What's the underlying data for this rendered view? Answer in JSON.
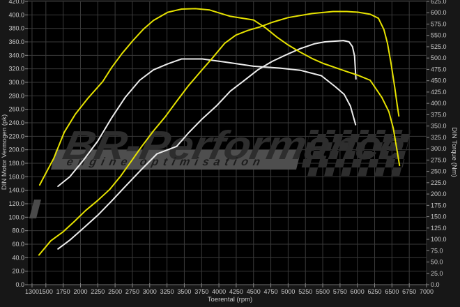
{
  "watermark": {
    "brand": "BR-Performance",
    "tagline": "engine optimisation"
  },
  "colors": {
    "background_outer": "#171717",
    "plot_background": "#000000",
    "grid": "#3a3a3a",
    "tick_text": "#c9c9c9",
    "tuned_curve": "#e6e200",
    "stock_curve": "#ededed",
    "watermark_text": "#2d2d2d",
    "watermark_strip": "#4e4e4e"
  },
  "chart_data": {
    "type": "line",
    "title": "",
    "legend": false,
    "grid": true,
    "x": {
      "label": "Toerental (rpm)",
      "min": 1240,
      "max": 7000,
      "ticks": [
        1300,
        1500,
        1750,
        2000,
        2250,
        2500,
        2750,
        3000,
        3250,
        3500,
        3750,
        4000,
        4250,
        4500,
        4750,
        5000,
        5250,
        5500,
        5750,
        6000,
        6250,
        6500,
        6750,
        7000
      ]
    },
    "y_left": {
      "label": "DIN Motor Vermogen (pk)",
      "min": 0,
      "max": 420,
      "step": 20
    },
    "y_right": {
      "label": "DIN Torque (Nm)",
      "min": 0,
      "max": 625,
      "step": 25
    },
    "series": [
      {
        "id": "torque-stock-white",
        "color": "#ededed",
        "axis": "right",
        "unit": "Nm",
        "points": [
          [
            1675,
            217
          ],
          [
            1845,
            238
          ],
          [
            2045,
            275
          ],
          [
            2250,
            317
          ],
          [
            2450,
            368
          ],
          [
            2650,
            414
          ],
          [
            2855,
            451
          ],
          [
            3055,
            474
          ],
          [
            3260,
            487
          ],
          [
            3460,
            498
          ],
          [
            3760,
            498
          ],
          [
            4095,
            491
          ],
          [
            4500,
            482
          ],
          [
            4870,
            478
          ],
          [
            5175,
            473
          ],
          [
            5480,
            461
          ],
          [
            5680,
            437
          ],
          [
            5810,
            420
          ],
          [
            5900,
            394
          ],
          [
            5975,
            353
          ]
        ]
      },
      {
        "id": "power-stock-white",
        "color": "#ededed",
        "axis": "left",
        "unit": "pk",
        "points": [
          [
            1675,
            53
          ],
          [
            1845,
            66
          ],
          [
            2045,
            84
          ],
          [
            2250,
            103
          ],
          [
            2450,
            124
          ],
          [
            2650,
            146
          ],
          [
            2855,
            168
          ],
          [
            3105,
            194
          ],
          [
            3390,
            205
          ],
          [
            3560,
            225
          ],
          [
            3760,
            246
          ],
          [
            3965,
            265
          ],
          [
            4165,
            287
          ],
          [
            4370,
            303
          ],
          [
            4570,
            319
          ],
          [
            4770,
            331
          ],
          [
            4975,
            341
          ],
          [
            5175,
            350
          ],
          [
            5375,
            357
          ],
          [
            5530,
            360
          ],
          [
            5680,
            361
          ],
          [
            5800,
            362
          ],
          [
            5880,
            360
          ],
          [
            5930,
            353
          ],
          [
            5960,
            339
          ],
          [
            5980,
            305
          ]
        ]
      },
      {
        "id": "torque-tuned-yellow",
        "color": "#e6e200",
        "axis": "right",
        "unit": "Nm",
        "points": [
          [
            1410,
            220
          ],
          [
            1490,
            243
          ],
          [
            1615,
            279
          ],
          [
            1765,
            336
          ],
          [
            1925,
            376
          ],
          [
            2100,
            410
          ],
          [
            2320,
            448
          ],
          [
            2450,
            479
          ],
          [
            2600,
            510
          ],
          [
            2755,
            538
          ],
          [
            2905,
            563
          ],
          [
            3055,
            583
          ],
          [
            3260,
            601
          ],
          [
            3460,
            608
          ],
          [
            3660,
            609
          ],
          [
            3865,
            606
          ],
          [
            4165,
            592
          ],
          [
            4500,
            584
          ],
          [
            4670,
            567
          ],
          [
            4840,
            546
          ],
          [
            5000,
            529
          ],
          [
            5175,
            513
          ],
          [
            5345,
            499
          ],
          [
            5510,
            488
          ],
          [
            5680,
            479
          ],
          [
            5850,
            470
          ],
          [
            6010,
            462
          ],
          [
            6185,
            451
          ],
          [
            6355,
            413
          ],
          [
            6455,
            382
          ],
          [
            6520,
            345
          ],
          [
            6610,
            263
          ]
        ]
      },
      {
        "id": "power-tuned-yellow",
        "color": "#e6e200",
        "axis": "left",
        "unit": "pk",
        "points": [
          [
            1400,
            44
          ],
          [
            1570,
            65
          ],
          [
            1745,
            78
          ],
          [
            1915,
            94
          ],
          [
            2075,
            110
          ],
          [
            2250,
            125
          ],
          [
            2420,
            141
          ],
          [
            2580,
            161
          ],
          [
            2755,
            186
          ],
          [
            2885,
            205
          ],
          [
            3055,
            228
          ],
          [
            3225,
            249
          ],
          [
            3390,
            272
          ],
          [
            3560,
            295
          ],
          [
            3760,
            319
          ],
          [
            3915,
            337
          ],
          [
            4085,
            358
          ],
          [
            4245,
            370
          ],
          [
            4420,
            377
          ],
          [
            4590,
            382
          ],
          [
            4770,
            389
          ],
          [
            5000,
            396
          ],
          [
            5345,
            402
          ],
          [
            5650,
            405
          ],
          [
            5850,
            405
          ],
          [
            6010,
            404
          ],
          [
            6185,
            401
          ],
          [
            6305,
            395
          ],
          [
            6385,
            378
          ],
          [
            6435,
            358
          ],
          [
            6485,
            329
          ],
          [
            6540,
            293
          ],
          [
            6575,
            267
          ],
          [
            6600,
            250
          ]
        ]
      }
    ]
  }
}
